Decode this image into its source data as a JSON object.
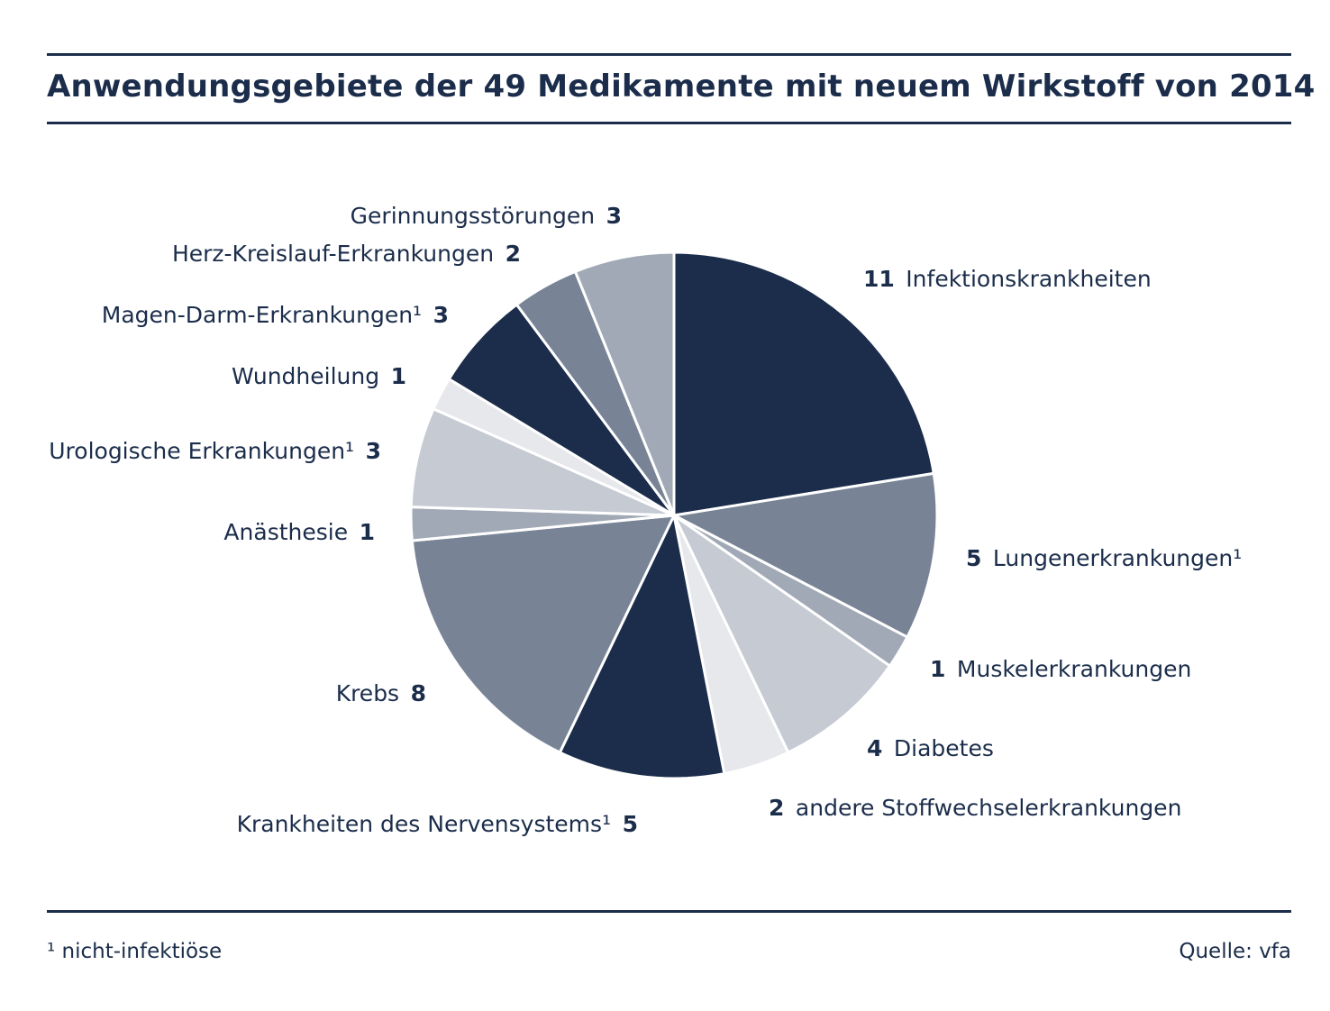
{
  "title": "Anwendungsgebiete der 49 Medikamente mit neuem Wirkstoff von 2014",
  "footnote": "¹ nicht-infektiöse",
  "source": "Quelle: vfa",
  "colors": {
    "dark": "#1b2d4b",
    "mid": "#788496",
    "light_mid": "#a2a9b6",
    "light": "#c5cad3",
    "lightest": "#e6e8ec"
  },
  "chart_data": {
    "type": "pie",
    "title": "Anwendungsgebiete der 49 Medikamente mit neuem Wirkstoff von 2014",
    "total": 49,
    "slices": [
      {
        "label": "Infektionskrankheiten",
        "value": 11,
        "color": "#1b2d4b",
        "value_first": true
      },
      {
        "label": "Lungenerkrankungen¹",
        "value": 5,
        "color": "#788496",
        "value_first": true
      },
      {
        "label": "Muskelerkrankungen",
        "value": 1,
        "color": "#a2a9b6",
        "value_first": true
      },
      {
        "label": "Diabetes",
        "value": 4,
        "color": "#c5cad3",
        "value_first": true
      },
      {
        "label": "andere Stoffwechselerkrankungen",
        "value": 2,
        "color": "#e6e8ec",
        "value_first": true
      },
      {
        "label": "Krankheiten des Nervensystems¹",
        "value": 5,
        "color": "#1b2d4b",
        "value_first": false
      },
      {
        "label": "Krebs",
        "value": 8,
        "color": "#788496",
        "value_first": false
      },
      {
        "label": "Anästhesie",
        "value": 1,
        "color": "#a2a9b6",
        "value_first": false
      },
      {
        "label": "Urologische Erkrankungen¹",
        "value": 3,
        "color": "#c5cad3",
        "value_first": false
      },
      {
        "label": "Wundheilung",
        "value": 1,
        "color": "#e6e8ec",
        "value_first": false
      },
      {
        "label": "Magen-Darm-Erkrankungen¹",
        "value": 3,
        "color": "#1b2d4b",
        "value_first": false
      },
      {
        "label": "Herz-Kreislauf-Erkrankungen",
        "value": 2,
        "color": "#788496",
        "value_first": false
      },
      {
        "label": "Gerinnungsstörungen",
        "value": 3,
        "color": "#a2a9b6",
        "value_first": false
      }
    ]
  }
}
